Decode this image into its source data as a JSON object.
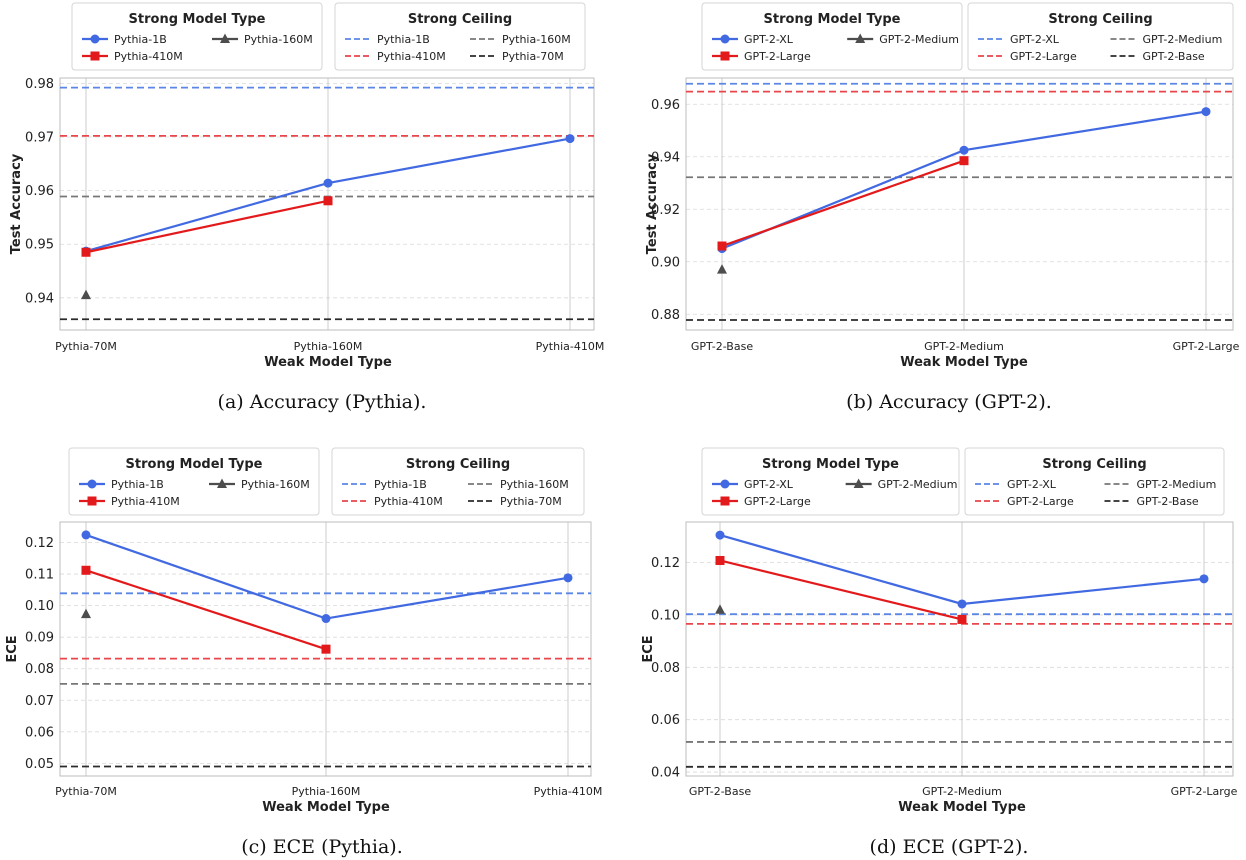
{
  "chart_data": [
    {
      "type": "line",
      "caption": "(a) Accuracy (Pythia).",
      "xlabel": "Weak Model Type",
      "ylabel": "Test Accuracy",
      "categories": [
        "Pythia-70M",
        "Pythia-160M",
        "Pythia-410M"
      ],
      "ylim": [
        0.934,
        0.981
      ],
      "yticks": [
        0.94,
        0.95,
        0.96,
        0.97,
        0.98
      ],
      "ytick_labels": [
        "0.94",
        "0.95",
        "0.96",
        "0.97",
        "0.98"
      ],
      "grid": true,
      "legend_placement": "top",
      "legend_strong_title": "Strong Model Type",
      "legend_ceiling_title": "Strong Ceiling",
      "series": [
        {
          "name": "Pythia-1B",
          "color": "#4169e1",
          "marker": "circle",
          "values": [
            0.9487,
            0.9614,
            0.9697
          ]
        },
        {
          "name": "Pythia-410M",
          "color": "#e31a1c",
          "marker": "square",
          "values": [
            0.9485,
            0.9581,
            null
          ]
        },
        {
          "name": "Pythia-160M",
          "color": "#4d4d4d",
          "marker": "triangle",
          "values": [
            0.9405,
            null,
            null
          ]
        }
      ],
      "ceilings": [
        {
          "name": "Pythia-1B",
          "color": "#5b86e5",
          "value": 0.9792
        },
        {
          "name": "Pythia-410M",
          "color": "#e8464b",
          "value": 0.9702
        },
        {
          "name": "Pythia-160M",
          "color": "#777777",
          "value": 0.9589
        },
        {
          "name": "Pythia-70M",
          "color": "#2b2b2b",
          "value": 0.936
        }
      ]
    },
    {
      "type": "line",
      "caption": "(b) Accuracy (GPT-2).",
      "xlabel": "Weak Model Type",
      "ylabel": "Test Accuracy",
      "categories": [
        "GPT-2-Base",
        "GPT-2-Medium",
        "GPT-2-Large"
      ],
      "ylim": [
        0.874,
        0.97
      ],
      "yticks": [
        0.88,
        0.9,
        0.92,
        0.94,
        0.96
      ],
      "ytick_labels": [
        "0.88",
        "0.90",
        "0.92",
        "0.94",
        "0.96"
      ],
      "grid": true,
      "legend_placement": "top",
      "legend_strong_title": "Strong Model Type",
      "legend_ceiling_title": "Strong Ceiling",
      "series": [
        {
          "name": "GPT-2-XL",
          "color": "#4169e1",
          "marker": "circle",
          "values": [
            0.905,
            0.9425,
            0.9572
          ]
        },
        {
          "name": "GPT-2-Large",
          "color": "#e31a1c",
          "marker": "square",
          "values": [
            0.906,
            0.9385,
            null
          ]
        },
        {
          "name": "GPT-2-Medium",
          "color": "#4d4d4d",
          "marker": "triangle",
          "values": [
            0.897,
            null,
            null
          ]
        }
      ],
      "ceilings": [
        {
          "name": "GPT-2-XL",
          "color": "#5b86e5",
          "value": 0.9678
        },
        {
          "name": "GPT-2-Large",
          "color": "#e8464b",
          "value": 0.9648
        },
        {
          "name": "GPT-2-Medium",
          "color": "#777777",
          "value": 0.9322
        },
        {
          "name": "GPT-2-Base",
          "color": "#2b2b2b",
          "value": 0.8778
        }
      ]
    },
    {
      "type": "line",
      "caption": "(c) ECE (Pythia).",
      "xlabel": "Weak Model Type",
      "ylabel": "ECE",
      "categories": [
        "Pythia-70M",
        "Pythia-160M",
        "Pythia-410M"
      ],
      "ylim": [
        0.046,
        0.1265
      ],
      "yticks": [
        0.05,
        0.06,
        0.07,
        0.08,
        0.09,
        0.1,
        0.11,
        0.12
      ],
      "ytick_labels": [
        "0.05",
        "0.06",
        "0.07",
        "0.08",
        "0.09",
        "0.10",
        "0.11",
        "0.12"
      ],
      "grid": true,
      "legend_placement": "top",
      "legend_strong_title": "Strong Model Type",
      "legend_ceiling_title": "Strong Ceiling",
      "series": [
        {
          "name": "Pythia-1B",
          "color": "#4169e1",
          "marker": "circle",
          "values": [
            0.1224,
            0.0959,
            0.1088
          ]
        },
        {
          "name": "Pythia-410M",
          "color": "#e31a1c",
          "marker": "square",
          "values": [
            0.1112,
            0.0862,
            null
          ]
        },
        {
          "name": "Pythia-160M",
          "color": "#4d4d4d",
          "marker": "triangle",
          "values": [
            0.0973,
            null,
            null
          ]
        }
      ],
      "ceilings": [
        {
          "name": "Pythia-1B",
          "color": "#5b86e5",
          "value": 0.1039
        },
        {
          "name": "Pythia-410M",
          "color": "#e8464b",
          "value": 0.0832
        },
        {
          "name": "Pythia-160M",
          "color": "#777777",
          "value": 0.0752
        },
        {
          "name": "Pythia-70M",
          "color": "#2b2b2b",
          "value": 0.049
        }
      ]
    },
    {
      "type": "line",
      "caption": "(d) ECE (GPT-2).",
      "xlabel": "Weak Model Type",
      "ylabel": "ECE",
      "categories": [
        "GPT-2-Base",
        "GPT-2-Medium",
        "GPT-2-Large"
      ],
      "ylim": [
        0.0385,
        0.1355
      ],
      "yticks": [
        0.04,
        0.06,
        0.08,
        0.1,
        0.12
      ],
      "ytick_labels": [
        "0.04",
        "0.06",
        "0.08",
        "0.10",
        "0.12"
      ],
      "grid": true,
      "legend_placement": "top",
      "legend_strong_title": "Strong Model Type",
      "legend_ceiling_title": "Strong Ceiling",
      "series": [
        {
          "name": "GPT-2-XL",
          "color": "#4169e1",
          "marker": "circle",
          "values": [
            0.1305,
            0.1042,
            0.1138
          ]
        },
        {
          "name": "GPT-2-Large",
          "color": "#e31a1c",
          "marker": "square",
          "values": [
            0.1208,
            0.0983,
            null
          ]
        },
        {
          "name": "GPT-2-Medium",
          "color": "#4d4d4d",
          "marker": "triangle",
          "values": [
            0.102,
            null,
            null
          ]
        }
      ],
      "ceilings": [
        {
          "name": "GPT-2-XL",
          "color": "#5b86e5",
          "value": 0.1003
        },
        {
          "name": "GPT-2-Large",
          "color": "#e8464b",
          "value": 0.0966
        },
        {
          "name": "GPT-2-Medium",
          "color": "#777777",
          "value": 0.0515
        },
        {
          "name": "GPT-2-Base",
          "color": "#2b2b2b",
          "value": 0.042
        }
      ]
    }
  ]
}
